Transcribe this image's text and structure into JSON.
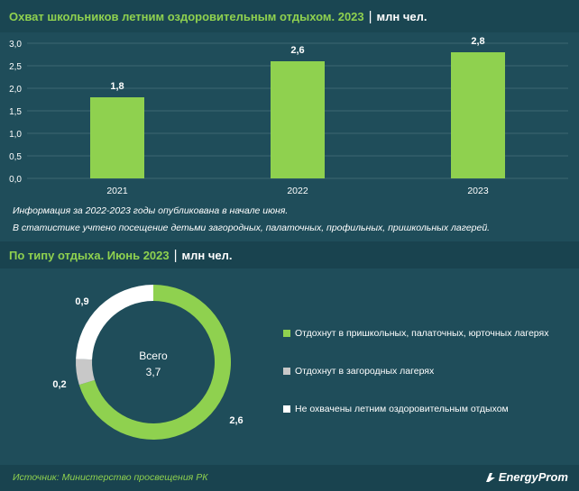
{
  "header": {
    "title": "Охват школьников летним оздоровительным отдыхом. 2023",
    "unit": "млн чел."
  },
  "chart_data": [
    {
      "type": "bar",
      "categories": [
        "2021",
        "2022",
        "2023"
      ],
      "values": [
        1.8,
        2.6,
        2.8
      ],
      "value_labels": [
        "1,8",
        "2,6",
        "2,8"
      ],
      "ylim": [
        0,
        3.0
      ],
      "yticks": [
        "0,0",
        "0,5",
        "1,0",
        "1,5",
        "2,0",
        "2,5",
        "3,0"
      ],
      "ytick_values": [
        0,
        0.5,
        1.0,
        1.5,
        2.0,
        2.5,
        3.0
      ],
      "grid": true,
      "color": "#8fd14f"
    },
    {
      "type": "pie",
      "title": "По типу отдыха. Июнь 2023",
      "unit": "млн чел.",
      "center_label": "Всего",
      "center_value": "3,7",
      "slices": [
        {
          "name": "Отдохнут в пришкольных, палаточных, юрточных лагерях",
          "value": 2.6,
          "label": "2,6",
          "color": "#8fd14f"
        },
        {
          "name": "Отдохнут в загородных лагерях",
          "value": 0.2,
          "label": "0,2",
          "color": "#c8c8c8"
        },
        {
          "name": "Не охвачены летним оздоровительным отдыхом",
          "value": 0.9,
          "label": "0,9",
          "color": "#ffffff"
        }
      ],
      "legend_position": "right"
    }
  ],
  "notes": [
    "Информация за 2022-2023 годы опубликована в начале июня.",
    "В статистике учтено посещение детьми загородных, палаточных, профильных, пришкольных лагерей."
  ],
  "footer": {
    "source": "Источник: Министерство просвещения РК",
    "brand": "EnergyProm"
  }
}
